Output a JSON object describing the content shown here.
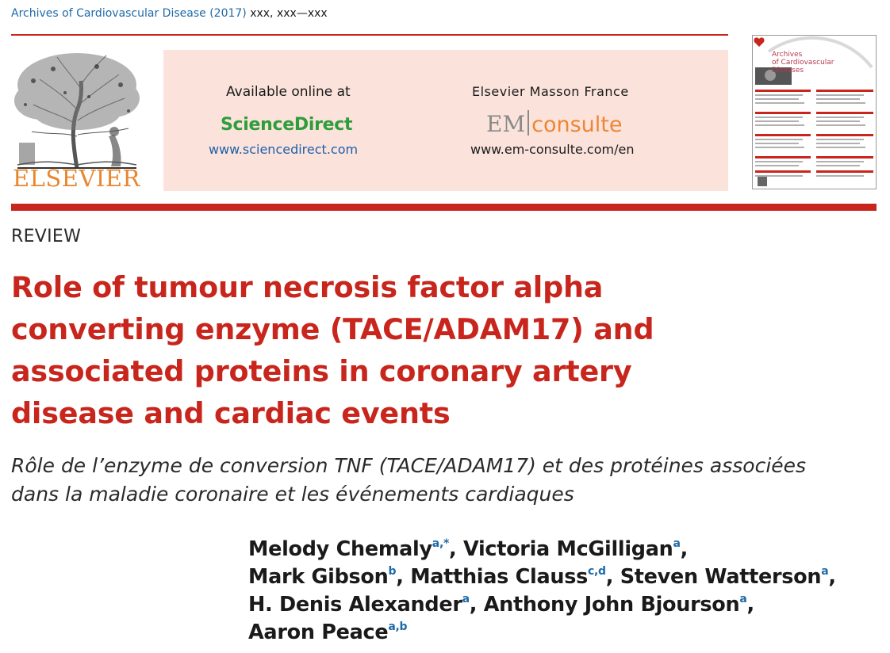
{
  "journal_ref": {
    "name": "Archives of Cardiovascular Disease (2017)",
    "pages": "xxx, xxx—xxx"
  },
  "publisher": {
    "name": "ELSEVIER"
  },
  "banner": {
    "available_label": "Available online at",
    "sciencedirect_name": "ScienceDirect",
    "sciencedirect_url": "www.sciencedirect.com",
    "emf_title": "Elsevier Masson France",
    "em_logo_left": "EM",
    "em_logo_right": "consulte",
    "em_url": "www.em-consulte.com/en"
  },
  "cover": {
    "title_line1": "Archives",
    "title_line2": "of Cardiovascular",
    "title_line3": "Diseases"
  },
  "article": {
    "section": "REVIEW",
    "title_lines": [
      "Role of tumour necrosis factor alpha",
      "converting enzyme (TACE/ADAM17) and",
      "associated proteins in coronary artery",
      "disease and cardiac events"
    ],
    "subtitle_lines": [
      "Rôle de l’enzyme de conversion TNF (TACE/ADAM17) et des protéines associées",
      "dans la maladie coronaire et les événements cardiaques"
    ],
    "authors": [
      {
        "name": "Melody Chemaly",
        "sup": "a,*"
      },
      {
        "name": "Victoria McGilligan",
        "sup": "a"
      },
      {
        "name": "Mark Gibson",
        "sup": "b"
      },
      {
        "name": "Matthias Clauss",
        "sup": "c,d"
      },
      {
        "name": "Steven Watterson",
        "sup": "a"
      },
      {
        "name": "H. Denis Alexander",
        "sup": "a"
      },
      {
        "name": "Anthony John Bjourson",
        "sup": "a"
      },
      {
        "name": "Aaron Peace",
        "sup": "a,b"
      }
    ]
  },
  "colors": {
    "accent_red": "#c8261d",
    "link_blue": "#1e6aa8",
    "sciencedirect_green": "#2e9d3a",
    "elsevier_orange": "#e8862e",
    "banner_bg": "#fbe3dc"
  }
}
